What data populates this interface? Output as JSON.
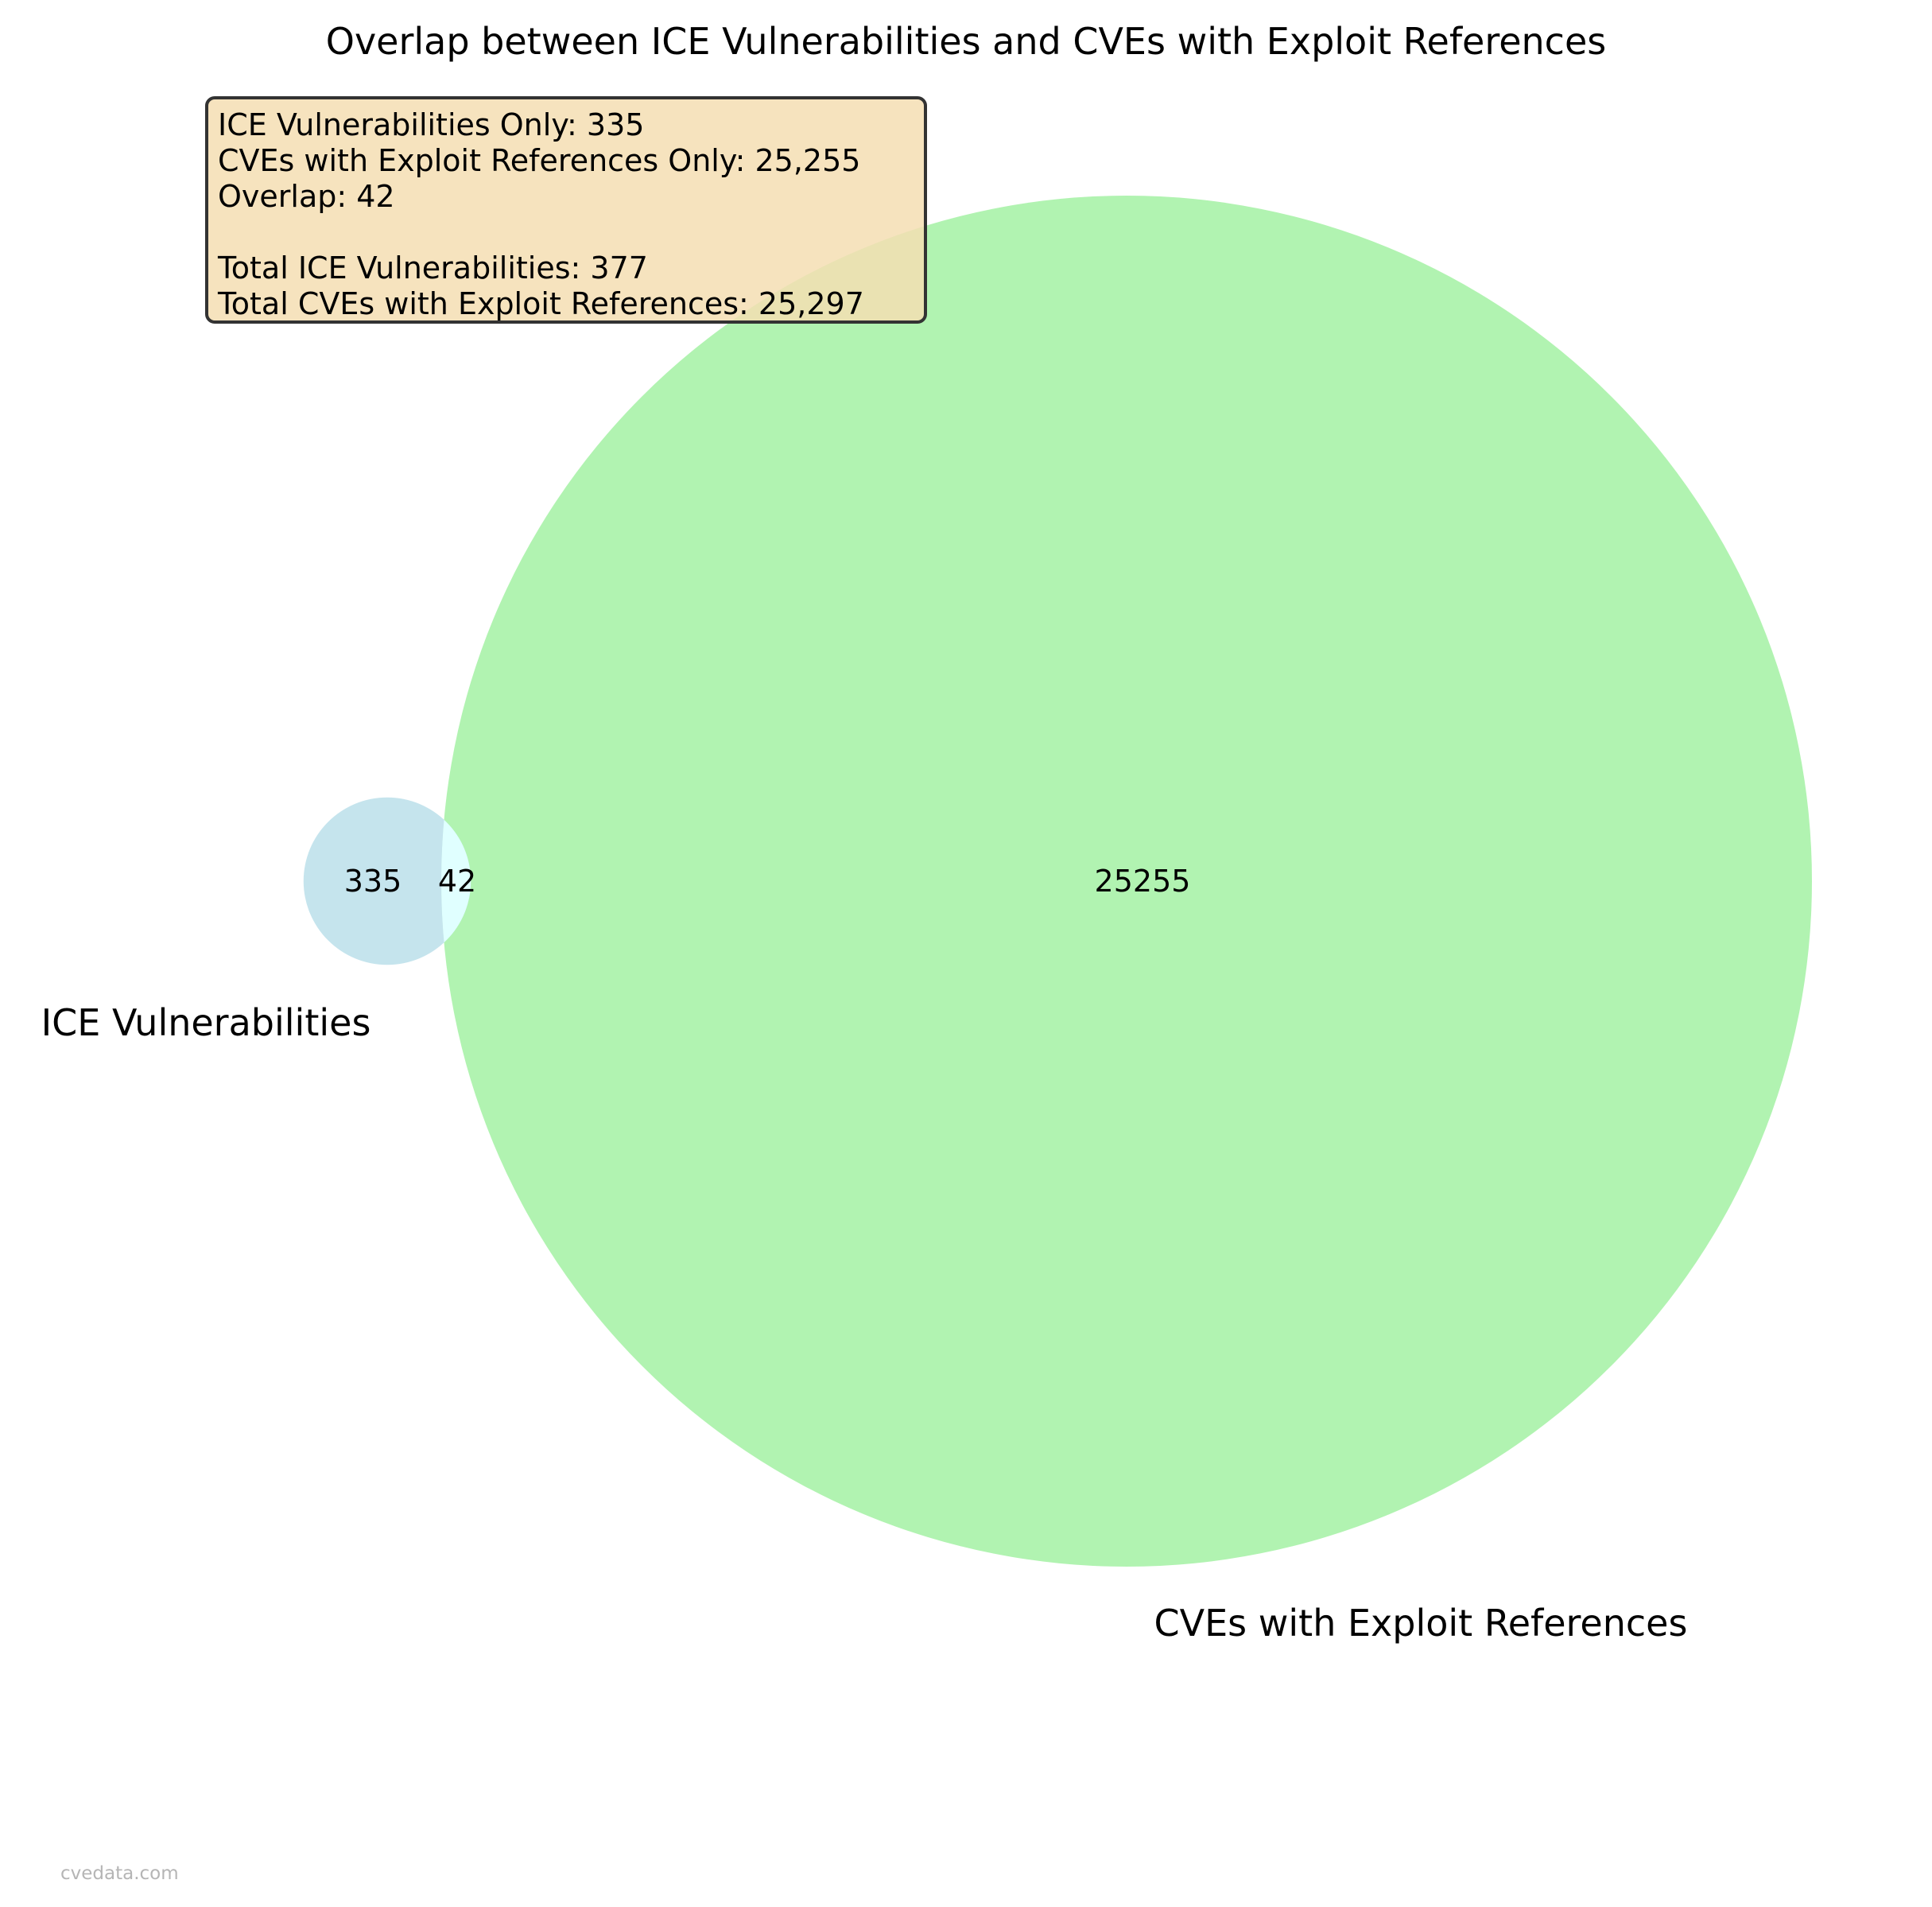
{
  "chart_data": {
    "type": "venn",
    "title": "Overlap between ICE Vulnerabilities and CVEs with Exploit References",
    "sets": [
      {
        "name": "ICE Vulnerabilities",
        "only": 335,
        "total": 377,
        "color": "#add8e6"
      },
      {
        "name": "CVEs with Exploit References",
        "only": 25255,
        "total": 25297,
        "color": "#90ee90"
      }
    ],
    "overlap": 42,
    "overlap_color": "#e0ffff",
    "region_labels": {
      "set_a_only": "335",
      "intersection": "42",
      "set_b_only": "25255"
    }
  },
  "stats_box": {
    "lines": [
      "ICE Vulnerabilities Only: 335",
      "CVEs with Exploit References Only: 25,255",
      "Overlap: 42",
      "",
      "Total ICE Vulnerabilities: 377",
      "Total CVEs with Exploit References: 25,297"
    ]
  },
  "watermark": "cvedata.com"
}
